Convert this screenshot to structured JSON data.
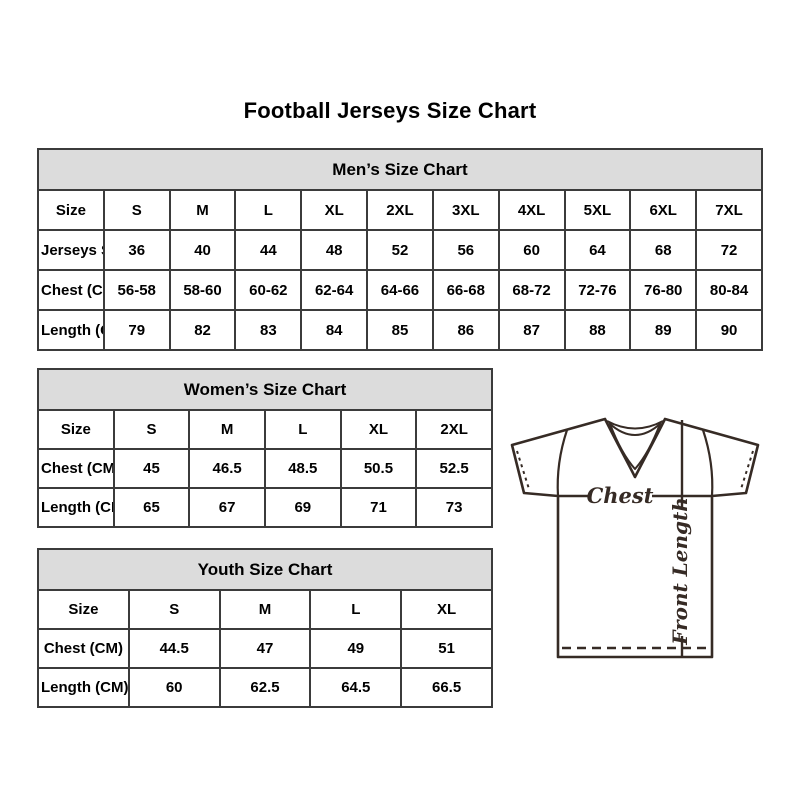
{
  "page": {
    "title": "Football Jerseys Size Chart"
  },
  "chart_data": [
    {
      "type": "table",
      "title": "Men’s Size Chart",
      "rows": [
        [
          "Size",
          "S",
          "M",
          "L",
          "XL",
          "2XL",
          "3XL",
          "4XL",
          "5XL",
          "6XL",
          "7XL"
        ],
        [
          "Jerseys Size",
          "36",
          "40",
          "44",
          "48",
          "52",
          "56",
          "60",
          "64",
          "68",
          "72"
        ],
        [
          "Chest (CM)",
          "56-58",
          "58-60",
          "60-62",
          "62-64",
          "64-66",
          "66-68",
          "68-72",
          "72-76",
          "76-80",
          "80-84"
        ],
        [
          "Length (CM)",
          "79",
          "82",
          "83",
          "84",
          "85",
          "86",
          "87",
          "88",
          "89",
          "90"
        ]
      ]
    },
    {
      "type": "table",
      "title": "Women’s Size Chart",
      "rows": [
        [
          "Size",
          "S",
          "M",
          "L",
          "XL",
          "2XL"
        ],
        [
          "Chest (CM)",
          "45",
          "46.5",
          "48.5",
          "50.5",
          "52.5"
        ],
        [
          "Length (CM)",
          "65",
          "67",
          "69",
          "71",
          "73"
        ]
      ]
    },
    {
      "type": "table",
      "title": "Youth Size Chart",
      "rows": [
        [
          "Size",
          "S",
          "M",
          "L",
          "XL"
        ],
        [
          "Chest (CM)",
          "44.5",
          "47",
          "49",
          "51"
        ],
        [
          "Length (CM)",
          "60",
          "62.5",
          "64.5",
          "66.5"
        ]
      ]
    }
  ],
  "diagram": {
    "chest_label": "Chest",
    "front_length_label": "Front Length"
  },
  "colors": {
    "table_header_bg": "#dcdcdc",
    "table_border": "#3b3b3b",
    "text_color": "#000000",
    "diagram_line_color": "#362b25"
  }
}
